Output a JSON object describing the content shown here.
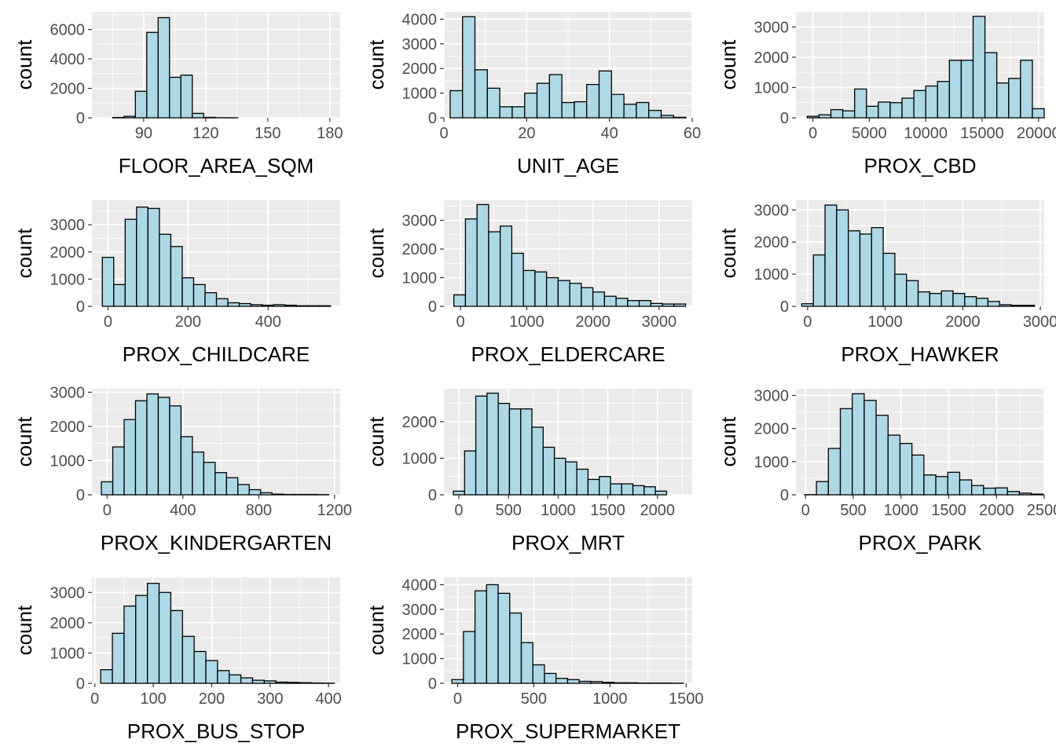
{
  "colors": {
    "panel_background": "#ebebeb",
    "grid_major": "#ffffff",
    "bar_fill": "#add8e6",
    "bar_outline": "#000000",
    "tick_text": "#4d4d4d",
    "axis_title": "#000000"
  },
  "chart_data": [
    {
      "type": "bar",
      "xlabel": "FLOOR_AREA_SQM",
      "ylabel": "count",
      "xlim": [
        65,
        185
      ],
      "ylim": [
        0,
        7200
      ],
      "xticks": [
        90,
        120,
        150,
        180
      ],
      "yticks": [
        0,
        2000,
        4000,
        6000
      ],
      "grid": true,
      "bin_start": 75,
      "bin_width": 5.5,
      "values": [
        20,
        100,
        1800,
        5800,
        6800,
        2750,
        2900,
        300,
        30,
        5,
        5,
        0,
        0,
        0,
        0,
        0,
        0,
        0,
        0,
        0
      ]
    },
    {
      "type": "bar",
      "xlabel": "UNIT_AGE",
      "ylabel": "count",
      "xlim": [
        0,
        60
      ],
      "ylim": [
        0,
        4300
      ],
      "xticks": [
        0,
        20,
        40,
        60
      ],
      "yticks": [
        0,
        1000,
        2000,
        3000,
        4000
      ],
      "grid": true,
      "bin_start": 1.5,
      "bin_width": 3,
      "values": [
        1100,
        4100,
        1950,
        1200,
        450,
        450,
        1000,
        1400,
        1750,
        620,
        650,
        1350,
        1900,
        950,
        550,
        620,
        300,
        100,
        20
      ]
    },
    {
      "type": "bar",
      "xlabel": "PROX_CBD",
      "ylabel": "count",
      "xlim": [
        -1500,
        20500
      ],
      "ylim": [
        0,
        3500
      ],
      "xticks": [
        0,
        5000,
        10000,
        15000,
        20000
      ],
      "yticks": [
        0,
        1000,
        2000,
        3000
      ],
      "grid": true,
      "bin_start": -500,
      "bin_width": 1050,
      "values": [
        50,
        100,
        270,
        230,
        950,
        380,
        520,
        500,
        650,
        900,
        1050,
        1200,
        1900,
        1900,
        3350,
        2150,
        1150,
        1300,
        1900,
        300
      ]
    },
    {
      "type": "bar",
      "xlabel": "PROX_CHILDCARE",
      "ylabel": "count",
      "xlim": [
        -40,
        580
      ],
      "ylim": [
        0,
        3900
      ],
      "xticks": [
        0,
        200,
        400
      ],
      "yticks": [
        0,
        1000,
        2000,
        3000
      ],
      "grid": true,
      "bin_start": -14,
      "bin_width": 28.5,
      "values": [
        1800,
        800,
        3200,
        3650,
        3600,
        2650,
        2200,
        1050,
        800,
        500,
        280,
        130,
        100,
        60,
        40,
        60,
        40,
        20,
        20,
        20
      ]
    },
    {
      "type": "bar",
      "xlabel": "PROX_ELDERCARE",
      "ylabel": "count",
      "xlim": [
        -250,
        3500
      ],
      "ylim": [
        0,
        3700
      ],
      "xticks": [
        0,
        1000,
        2000,
        3000
      ],
      "yticks": [
        0,
        1000,
        2000,
        3000
      ],
      "grid": true,
      "bin_start": -100,
      "bin_width": 175,
      "values": [
        400,
        3050,
        3550,
        2600,
        2800,
        1850,
        1250,
        1200,
        1000,
        900,
        800,
        650,
        500,
        350,
        280,
        200,
        200,
        100,
        80,
        80
      ]
    },
    {
      "type": "bar",
      "xlabel": "PROX_HAWKER",
      "ylabel": "count",
      "xlim": [
        -150,
        3050
      ],
      "ylim": [
        0,
        3300
      ],
      "xticks": [
        0,
        1000,
        2000,
        3000
      ],
      "yticks": [
        0,
        1000,
        2000,
        3000
      ],
      "grid": true,
      "bin_start": -75,
      "bin_width": 150,
      "values": [
        80,
        1600,
        3150,
        3000,
        2350,
        2250,
        2450,
        1650,
        1000,
        800,
        450,
        400,
        480,
        400,
        300,
        250,
        150,
        50,
        30,
        30
      ]
    },
    {
      "type": "bar",
      "xlabel": "PROX_KINDERGARTEN",
      "ylabel": "count",
      "xlim": [
        -80,
        1230
      ],
      "ylim": [
        0,
        3100
      ],
      "xticks": [
        0,
        400,
        800,
        1200
      ],
      "yticks": [
        0,
        1000,
        2000,
        3000
      ],
      "grid": true,
      "bin_start": -30,
      "bin_width": 60,
      "values": [
        380,
        1400,
        2200,
        2750,
        2950,
        2850,
        2600,
        1700,
        1250,
        950,
        650,
        500,
        300,
        150,
        60,
        20,
        10,
        10,
        10,
        5
      ]
    },
    {
      "type": "bar",
      "xlabel": "PROX_MRT",
      "ylabel": "count",
      "xlim": [
        -150,
        2350
      ],
      "ylim": [
        0,
        2900
      ],
      "xticks": [
        0,
        500,
        1000,
        1500,
        2000
      ],
      "yticks": [
        0,
        1000,
        2000
      ],
      "grid": true,
      "bin_start": -55,
      "bin_width": 113,
      "values": [
        100,
        1200,
        2700,
        2780,
        2500,
        2350,
        2350,
        1850,
        1300,
        1000,
        900,
        700,
        420,
        500,
        300,
        300,
        250,
        220,
        100
      ]
    },
    {
      "type": "bar",
      "xlabel": "PROX_PARK",
      "ylabel": "count",
      "xlim": [
        -100,
        2500
      ],
      "ylim": [
        0,
        3200
      ],
      "xticks": [
        0,
        500,
        1000,
        1500,
        2000,
        2500
      ],
      "yticks": [
        0,
        1000,
        2000,
        3000
      ],
      "grid": true,
      "bin_start": -10,
      "bin_width": 125,
      "values": [
        5,
        400,
        1400,
        2600,
        3050,
        2850,
        2400,
        1800,
        1550,
        1200,
        600,
        550,
        680,
        450,
        280,
        200,
        210,
        100,
        50,
        20
      ]
    },
    {
      "type": "bar",
      "xlabel": "PROX_BUS_STOP",
      "ylabel": "count",
      "xlim": [
        -5,
        420
      ],
      "ylim": [
        0,
        3500
      ],
      "xticks": [
        0,
        100,
        200,
        300,
        400
      ],
      "yticks": [
        0,
        1000,
        2000,
        3000
      ],
      "grid": true,
      "bin_start": 10,
      "bin_width": 20,
      "values": [
        450,
        1650,
        2550,
        2900,
        3300,
        3000,
        2400,
        1550,
        1050,
        750,
        420,
        280,
        180,
        100,
        80,
        40,
        30,
        20,
        10,
        5
      ]
    },
    {
      "type": "bar",
      "xlabel": "PROX_SUPERMARKET",
      "ylabel": "count",
      "xlim": [
        -90,
        1540
      ],
      "ylim": [
        0,
        4300
      ],
      "xticks": [
        0,
        500,
        1000,
        1500
      ],
      "yticks": [
        0,
        1000,
        2000,
        3000,
        4000
      ],
      "grid": true,
      "bin_start": -38,
      "bin_width": 76,
      "values": [
        150,
        2100,
        3750,
        4000,
        3650,
        2850,
        1650,
        750,
        400,
        200,
        150,
        80,
        70,
        40,
        20,
        20,
        10,
        10,
        10,
        5
      ]
    }
  ]
}
